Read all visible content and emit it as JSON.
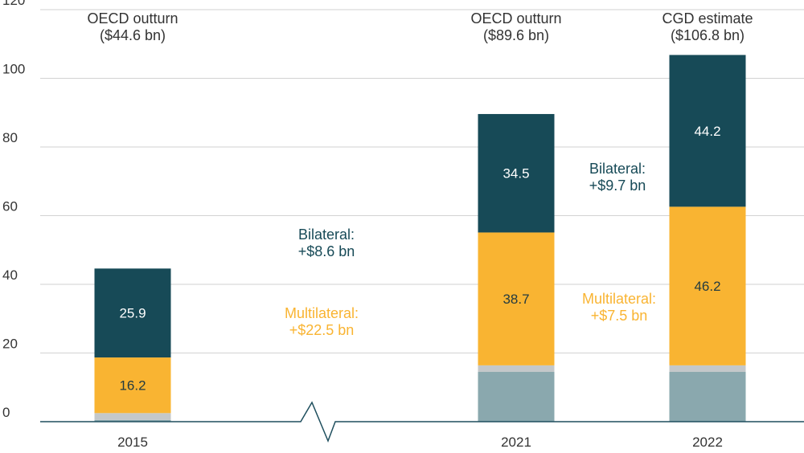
{
  "chart_data": {
    "type": "bar",
    "stacked": true,
    "ylim": [
      0,
      120
    ],
    "yticks": [
      0,
      20,
      40,
      60,
      80,
      100,
      120
    ],
    "grid": true,
    "categories": [
      "2015",
      "2021",
      "2022"
    ],
    "series": [
      {
        "color": "#8aa8ae",
        "values": [
          0.5,
          14.5,
          14.5
        ]
      },
      {
        "color": "#c4c8ca",
        "values": [
          2.0,
          1.9,
          1.9
        ]
      },
      {
        "color": "#f9b432",
        "values": [
          16.2,
          38.7,
          46.2
        ],
        "labels": [
          "16.2",
          "38.7",
          "46.2"
        ],
        "label_color": "#243b40"
      },
      {
        "color": "#174a57",
        "values": [
          25.9,
          34.5,
          44.2
        ],
        "labels": [
          "25.9",
          "34.5",
          "44.2"
        ],
        "label_color": "#ffffff"
      }
    ],
    "bar_headers": [
      [
        "OECD outturn",
        "($44.6 bn)"
      ],
      [
        "OECD outturn",
        "($89.6 bn)"
      ],
      [
        "CGD estimate",
        "($106.8 bn)"
      ]
    ],
    "annotations": [
      {
        "lines": [
          "Bilateral:",
          "+$8.6 bn"
        ],
        "color": "#174a57"
      },
      {
        "lines": [
          "Multilateral:",
          "+$22.5 bn"
        ],
        "color": "#f9b432"
      },
      {
        "lines": [
          "Bilateral:",
          "+$9.7 bn"
        ],
        "color": "#174a57"
      },
      {
        "lines": [
          "Multilateral:",
          "+$7.5 bn"
        ],
        "color": "#f9b432"
      }
    ],
    "axis_break": true
  }
}
